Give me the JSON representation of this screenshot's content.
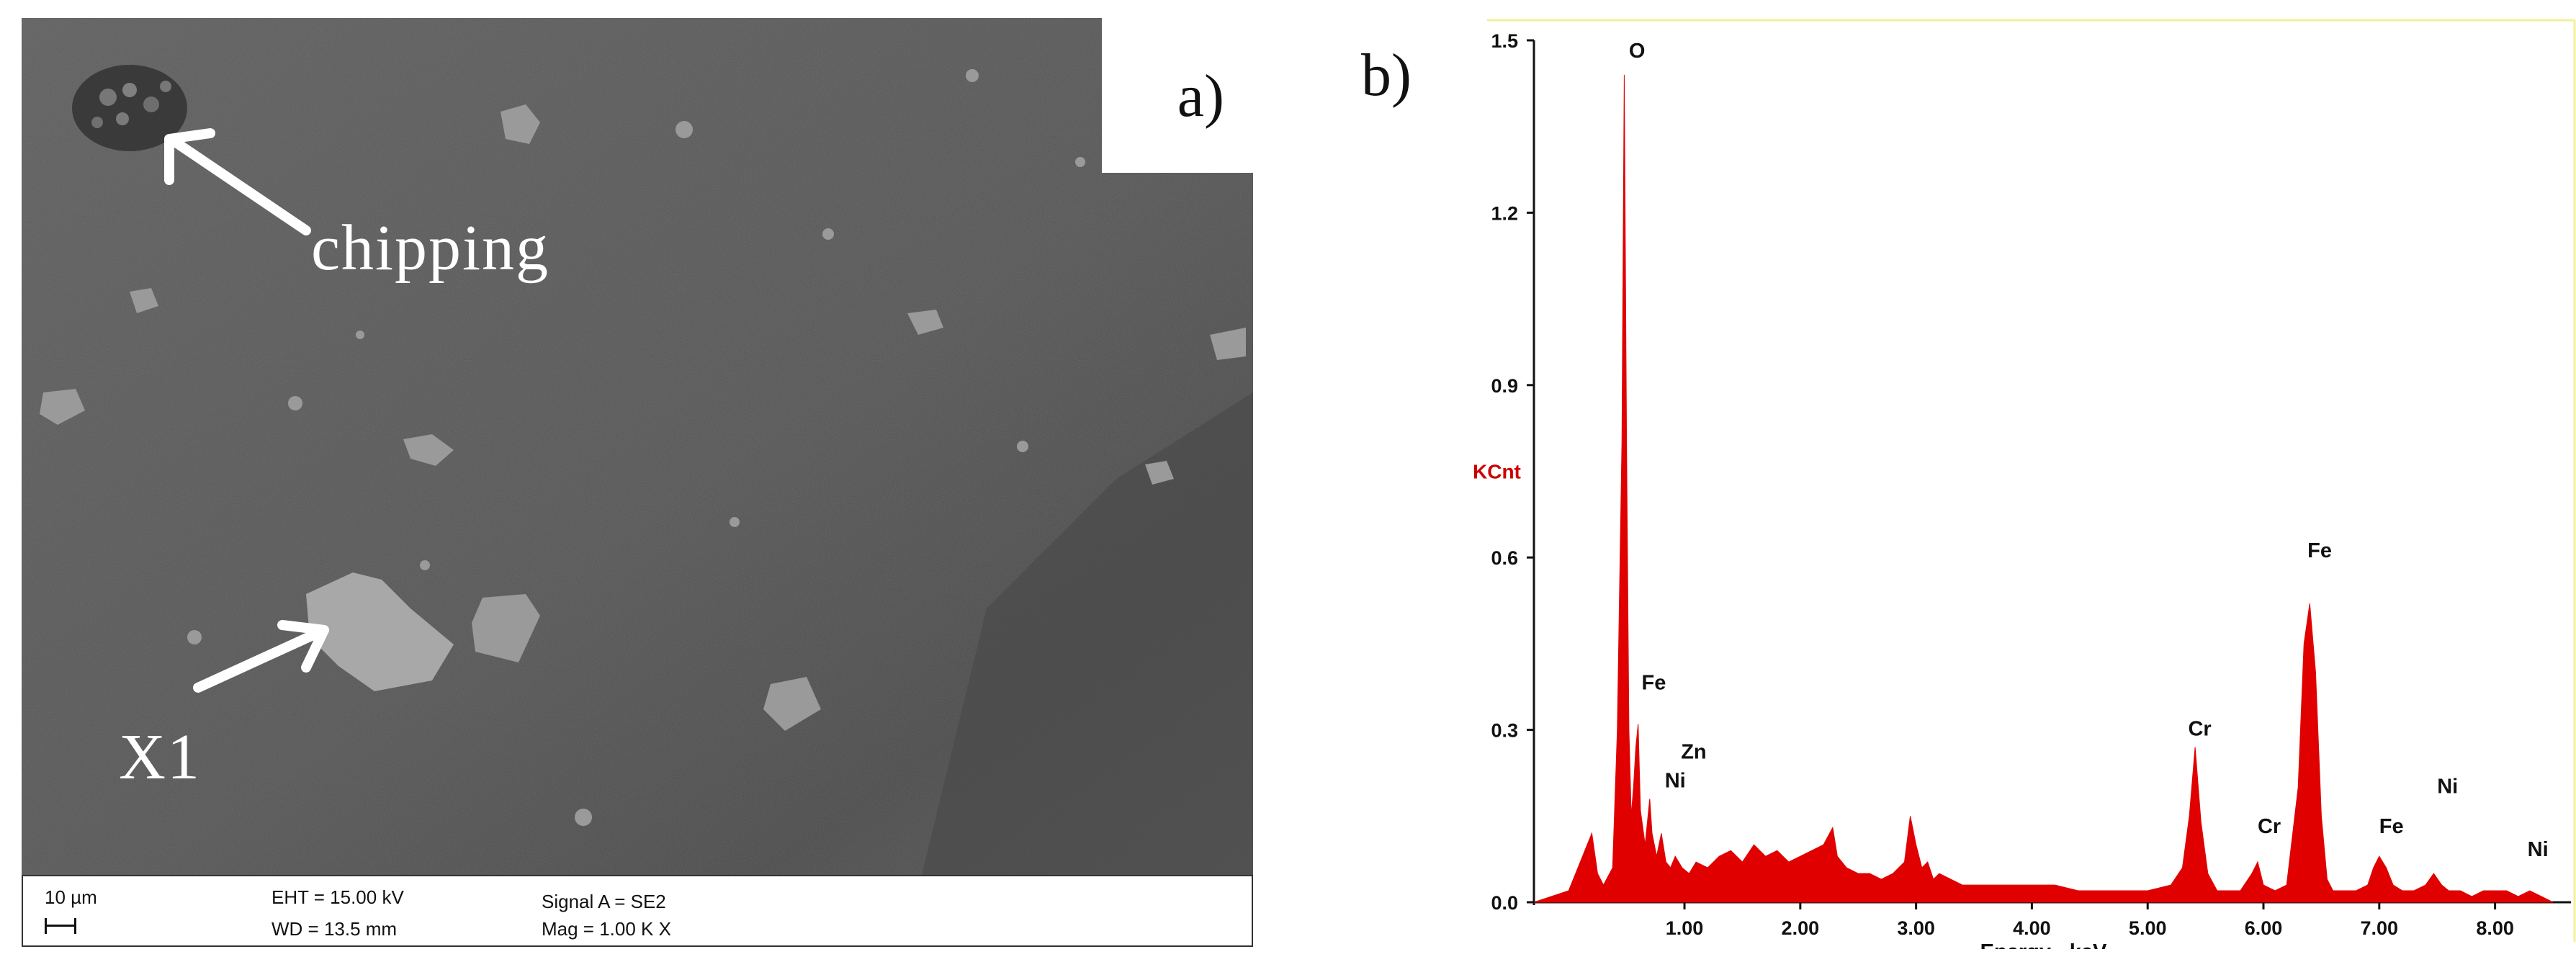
{
  "panel_a": {
    "label": "a)",
    "annotations": {
      "chipping": "chipping",
      "x1": "X1"
    },
    "info_bar": {
      "scale_bar_label": "10 µm",
      "eht": "EHT = 15.00 kV",
      "wd": "WD = 13.5 mm",
      "signal": "Signal A = SE2",
      "mag": "Mag =   1.00 K X"
    }
  },
  "panel_b": {
    "label": "b)"
  },
  "colors": {
    "spectrum_fill": "#e00000",
    "frame_yellow": "#f3ef9a",
    "sem_background": "#595959"
  },
  "chart_data": {
    "type": "area",
    "title": "",
    "xlabel": "Energy - keV",
    "ylabel": "KCnt",
    "xlim": [
      -0.3,
      8.5
    ],
    "ylim": [
      0,
      1.5
    ],
    "x_ticks": [
      1.0,
      2.0,
      3.0,
      4.0,
      5.0,
      6.0,
      7.0,
      8.0
    ],
    "x_tick_labels": [
      "1.00",
      "2.00",
      "3.00",
      "4.00",
      "5.00",
      "6.00",
      "7.00",
      "8.00"
    ],
    "y_ticks": [
      0,
      0.3,
      0.6,
      0.9,
      1.2,
      1.5
    ],
    "y_tick_labels": [
      "0.0",
      "0.3",
      "0.6",
      "0.9",
      "1.2",
      "1.5"
    ],
    "series": [
      {
        "x": [
          -0.3,
          0.0,
          0.2,
          0.25,
          0.3,
          0.38,
          0.42,
          0.46,
          0.48,
          0.5,
          0.52,
          0.54,
          0.56,
          0.58,
          0.6,
          0.62,
          0.66,
          0.7,
          0.72,
          0.76,
          0.8,
          0.84,
          0.88,
          0.92,
          0.98,
          1.04,
          1.1,
          1.2,
          1.3,
          1.4,
          1.5,
          1.6,
          1.7,
          1.8,
          1.9,
          2.0,
          2.1,
          2.2,
          2.28,
          2.32,
          2.4,
          2.5,
          2.6,
          2.7,
          2.8,
          2.9,
          2.95,
          3.0,
          3.05,
          3.1,
          3.15,
          3.2,
          3.4,
          3.6,
          3.8,
          4.0,
          4.2,
          4.4,
          4.6,
          4.8,
          5.0,
          5.2,
          5.3,
          5.36,
          5.41,
          5.46,
          5.52,
          5.6,
          5.7,
          5.8,
          5.9,
          5.95,
          6.0,
          6.1,
          6.2,
          6.3,
          6.35,
          6.4,
          6.45,
          6.5,
          6.55,
          6.6,
          6.7,
          6.8,
          6.9,
          6.95,
          7.0,
          7.06,
          7.12,
          7.2,
          7.3,
          7.4,
          7.47,
          7.54,
          7.6,
          7.7,
          7.8,
          7.9,
          8.0,
          8.1,
          8.2,
          8.3,
          8.4,
          8.5
        ],
        "values": [
          0.0,
          0.02,
          0.12,
          0.05,
          0.03,
          0.06,
          0.3,
          0.8,
          1.44,
          0.8,
          0.3,
          0.15,
          0.2,
          0.27,
          0.31,
          0.16,
          0.1,
          0.18,
          0.12,
          0.08,
          0.12,
          0.07,
          0.06,
          0.08,
          0.06,
          0.05,
          0.07,
          0.06,
          0.08,
          0.09,
          0.07,
          0.1,
          0.08,
          0.09,
          0.07,
          0.08,
          0.09,
          0.1,
          0.13,
          0.08,
          0.06,
          0.05,
          0.05,
          0.04,
          0.05,
          0.07,
          0.15,
          0.1,
          0.06,
          0.07,
          0.04,
          0.05,
          0.03,
          0.03,
          0.03,
          0.03,
          0.03,
          0.02,
          0.02,
          0.02,
          0.02,
          0.03,
          0.06,
          0.15,
          0.27,
          0.14,
          0.05,
          0.02,
          0.02,
          0.02,
          0.05,
          0.07,
          0.03,
          0.02,
          0.03,
          0.2,
          0.45,
          0.52,
          0.4,
          0.15,
          0.04,
          0.02,
          0.02,
          0.02,
          0.03,
          0.06,
          0.08,
          0.06,
          0.03,
          0.02,
          0.02,
          0.03,
          0.05,
          0.03,
          0.02,
          0.02,
          0.01,
          0.02,
          0.02,
          0.02,
          0.01,
          0.02,
          0.01,
          0.0
        ]
      }
    ],
    "peak_labels": [
      {
        "text": "O",
        "x": 0.52,
        "y": 1.47
      },
      {
        "text": "Fe",
        "x": 0.63,
        "y": 0.37
      },
      {
        "text": "Zn",
        "x": 0.97,
        "y": 0.25
      },
      {
        "text": "Ni",
        "x": 0.83,
        "y": 0.2
      },
      {
        "text": "Cr",
        "x": 5.35,
        "y": 0.29
      },
      {
        "text": "Cr",
        "x": 5.95,
        "y": 0.12
      },
      {
        "text": "Fe",
        "x": 6.38,
        "y": 0.6
      },
      {
        "text": "Fe",
        "x": 7.0,
        "y": 0.12
      },
      {
        "text": "Ni",
        "x": 7.5,
        "y": 0.19
      },
      {
        "text": "Ni",
        "x": 8.28,
        "y": 0.08
      }
    ]
  }
}
